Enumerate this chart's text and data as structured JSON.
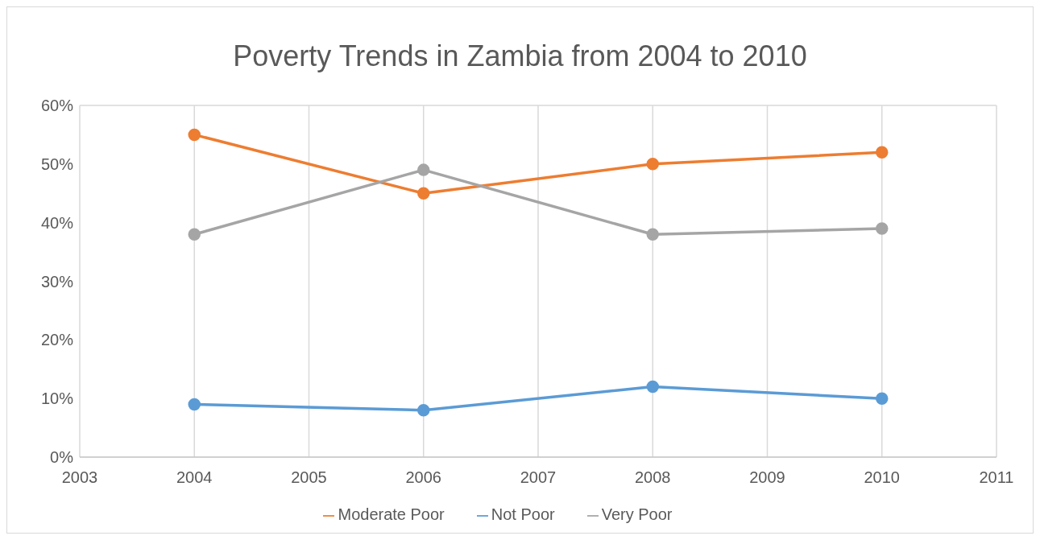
{
  "chart_data": {
    "type": "line",
    "title": "Poverty Trends in Zambia from 2004 to 2010",
    "x": [
      2004,
      2006,
      2008,
      2010
    ],
    "series": [
      {
        "name": "Not Poor",
        "color": "#5b9bd5",
        "values": [
          9,
          8,
          12,
          10
        ]
      },
      {
        "name": "Moderate Poor",
        "color": "#ed7d31",
        "values": [
          55,
          45,
          50,
          52
        ]
      },
      {
        "name": "Very Poor",
        "color": "#a5a5a5",
        "values": [
          38,
          49,
          38,
          39
        ]
      }
    ],
    "xlim": [
      2003,
      2011
    ],
    "xticks": [
      2003,
      2004,
      2005,
      2006,
      2007,
      2008,
      2009,
      2010,
      2011
    ],
    "ylim": [
      0,
      60
    ],
    "yticks": [
      {
        "value": 0,
        "label": "0%"
      },
      {
        "value": 10,
        "label": "10%"
      },
      {
        "value": 20,
        "label": "20%"
      },
      {
        "value": 30,
        "label": "30%"
      },
      {
        "value": 40,
        "label": "40%"
      },
      {
        "value": 50,
        "label": "50%"
      },
      {
        "value": 60,
        "label": "60%"
      }
    ],
    "grid": true,
    "legend": "bottom",
    "marker": "circle",
    "line_style": "solid"
  }
}
